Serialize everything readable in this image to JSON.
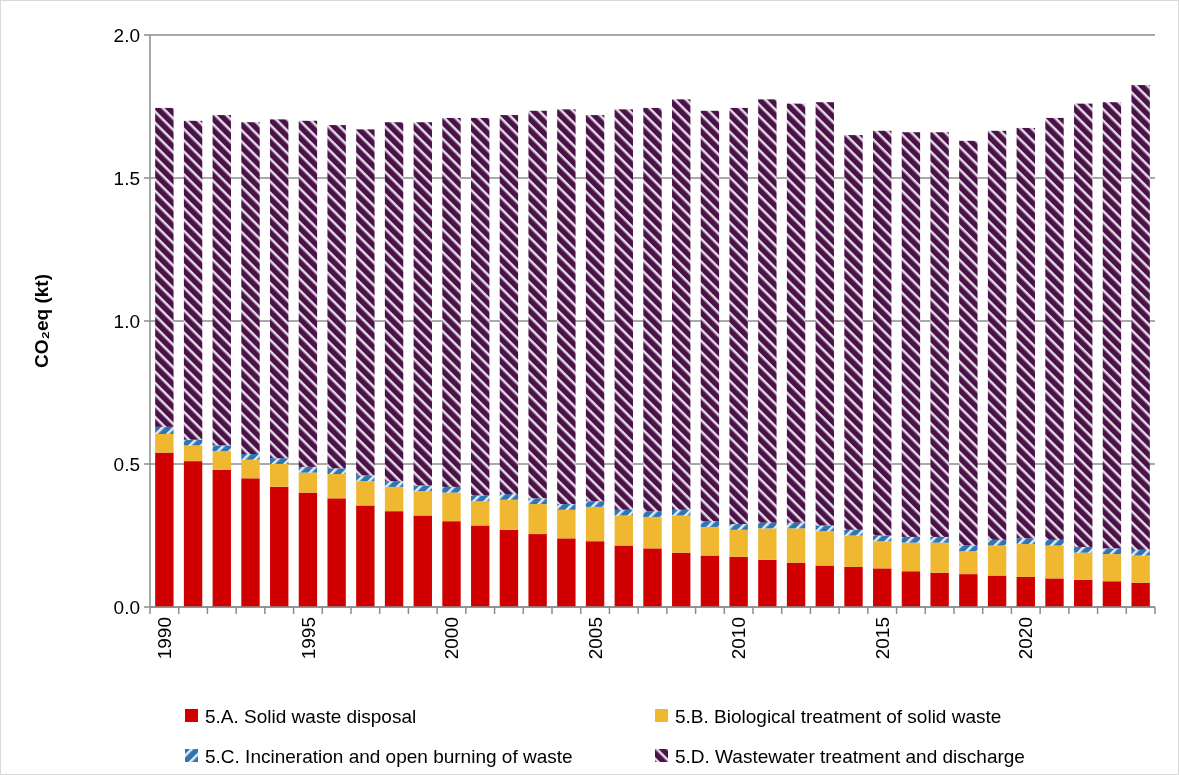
{
  "chart_data": {
    "type": "bar",
    "stacked": true,
    "ylabel": "CO₂eq (kt)",
    "categories": [
      "1990",
      null,
      null,
      null,
      null,
      "1995",
      null,
      null,
      null,
      null,
      "2000",
      null,
      null,
      null,
      null,
      "2005",
      null,
      null,
      null,
      null,
      "2010",
      null,
      null,
      null,
      null,
      "2015",
      null,
      null,
      null,
      null,
      "2020",
      null,
      null,
      null,
      null
    ],
    "series": [
      {
        "name": "5.A. Solid waste disposal",
        "color": "#d00000",
        "values": [
          0.54,
          0.51,
          0.48,
          0.45,
          0.42,
          0.4,
          0.38,
          0.355,
          0.335,
          0.32,
          0.3,
          0.285,
          0.27,
          0.255,
          0.24,
          0.23,
          0.215,
          0.205,
          0.19,
          0.18,
          0.175,
          0.165,
          0.155,
          0.145,
          0.14,
          0.135,
          0.125,
          0.12,
          0.115,
          0.11,
          0.105,
          0.1,
          0.095,
          0.09,
          0.085
        ]
      },
      {
        "name": "5.B. Biological treatment of solid waste",
        "color": "#f0b830",
        "values": [
          0.065,
          0.055,
          0.065,
          0.065,
          0.08,
          0.07,
          0.085,
          0.085,
          0.085,
          0.085,
          0.1,
          0.085,
          0.105,
          0.105,
          0.1,
          0.12,
          0.105,
          0.11,
          0.13,
          0.1,
          0.095,
          0.11,
          0.12,
          0.12,
          0.11,
          0.095,
          0.1,
          0.105,
          0.08,
          0.105,
          0.115,
          0.115,
          0.095,
          0.095,
          0.095
        ]
      },
      {
        "name": "5.C. Incineration and open burning of waste",
        "color": "#2e75b6",
        "values": [
          0.025,
          0.02,
          0.02,
          0.02,
          0.02,
          0.02,
          0.02,
          0.02,
          0.02,
          0.02,
          0.02,
          0.02,
          0.02,
          0.02,
          0.02,
          0.02,
          0.02,
          0.02,
          0.02,
          0.02,
          0.02,
          0.02,
          0.02,
          0.02,
          0.02,
          0.02,
          0.02,
          0.02,
          0.02,
          0.02,
          0.02,
          0.02,
          0.02,
          0.02,
          0.02
        ]
      },
      {
        "name": "5.D. Wastewater treatment and discharge",
        "color": "#4a1248",
        "values": [
          1.115,
          1.115,
          1.155,
          1.16,
          1.185,
          1.21,
          1.2,
          1.21,
          1.255,
          1.27,
          1.29,
          1.32,
          1.325,
          1.355,
          1.38,
          1.35,
          1.4,
          1.41,
          1.435,
          1.435,
          1.455,
          1.48,
          1.465,
          1.48,
          1.38,
          1.415,
          1.415,
          1.415,
          1.415,
          1.43,
          1.435,
          1.475,
          1.55,
          1.56,
          1.625
        ]
      }
    ],
    "ylim": [
      0,
      2
    ],
    "yticks": [
      {
        "value": 0,
        "label": "0.0"
      },
      0.5,
      {
        "value": 1,
        "label": "1.0"
      },
      1.5,
      {
        "value": 2,
        "label": "2.0"
      }
    ],
    "grid": "y",
    "legend": "bottom"
  }
}
